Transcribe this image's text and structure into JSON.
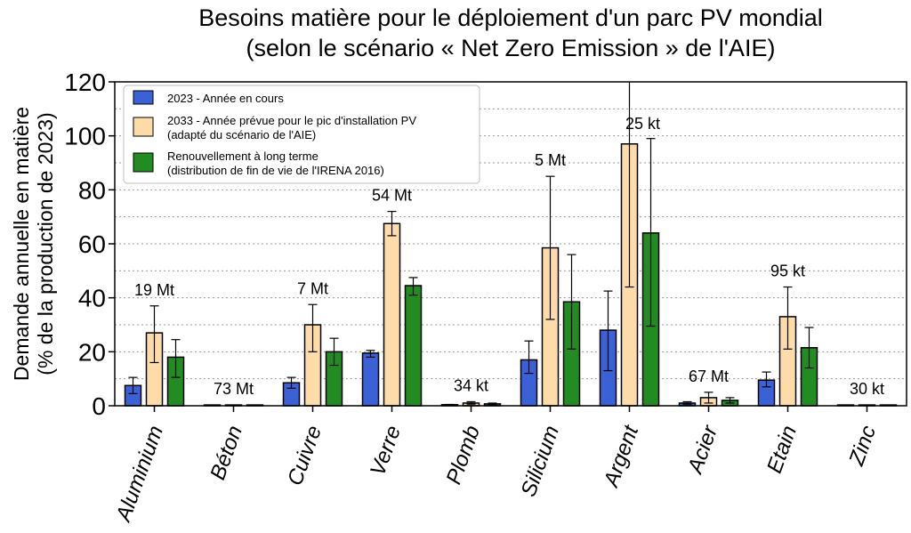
{
  "chart_data": {
    "type": "bar",
    "title_lines": [
      "Besoins matière pour le déploiement d'un parc PV mondial",
      "(selon le scénario « Net Zero Emission » de l'AIE)"
    ],
    "ylabel_lines": [
      "Demande annuelle en matière",
      "(% de la production de 2023)"
    ],
    "xlabel": "",
    "ylim": [
      0,
      120
    ],
    "yticks": [
      0,
      20,
      40,
      60,
      80,
      100,
      120
    ],
    "grid": "horizontal dotted",
    "legend_position": "top-left",
    "categories": [
      "Aluminium",
      "Béton",
      "Cuivre",
      "Verre",
      "Plomb",
      "Silicium",
      "Argent",
      "Acier",
      "Etain",
      "Zinc"
    ],
    "quantity_labels": [
      "19 Mt",
      "73 Mt",
      "7 Mt",
      "54 Mt",
      "34 kt",
      "5 Mt",
      "25 kt",
      "67 Mt",
      "95 kt",
      "30 kt"
    ],
    "series": [
      {
        "name": "2023 - Année en cours",
        "legend_lines": [
          "2023 - Année en cours"
        ],
        "color": "#3a61d6",
        "values": [
          7.5,
          0.3,
          8.5,
          19.5,
          0.4,
          17,
          28,
          1,
          9.5,
          0.3
        ],
        "err_low": [
          4.5,
          0.3,
          6.5,
          18,
          0.3,
          12,
          13,
          0.6,
          7,
          0.3
        ],
        "err_high": [
          10.5,
          0.3,
          10.5,
          20.5,
          0.5,
          24,
          42.5,
          1.5,
          12.5,
          0.3
        ]
      },
      {
        "name": "2033 - Année prévue pour le pic d'installation PV (adapté du scénario de l'AIE)",
        "legend_lines": [
          "2033 - Année prévue pour le pic d'installation PV",
          "(adapté du scénario de l'AIE)"
        ],
        "color": "#fddcaa",
        "values": [
          27,
          0.3,
          30,
          67.5,
          1,
          58.5,
          97,
          3,
          33,
          0.3
        ],
        "err_low": [
          16,
          0.3,
          20,
          63,
          0.6,
          32,
          44,
          1,
          21,
          0.3
        ],
        "err_high": [
          37,
          0.3,
          37.5,
          72,
          1.5,
          85,
          120,
          5,
          44,
          0.4
        ]
      },
      {
        "name": "Renouvellement à long terme (distribution de fin de vie de l'IRENA 2016)",
        "legend_lines": [
          "Renouvellement à long terme",
          "(distribution de fin de vie de l'IRENA 2016)"
        ],
        "color": "#228b22",
        "values": [
          18,
          0.3,
          20,
          44.5,
          0.7,
          38.5,
          64,
          2,
          21.5,
          0.3
        ],
        "err_low": [
          10.5,
          0.3,
          15,
          41,
          0.4,
          21,
          29.5,
          1,
          14,
          0.3
        ],
        "err_high": [
          24.5,
          0.3,
          25,
          47.5,
          1,
          56,
          99,
          3,
          29,
          0.3
        ]
      }
    ]
  }
}
